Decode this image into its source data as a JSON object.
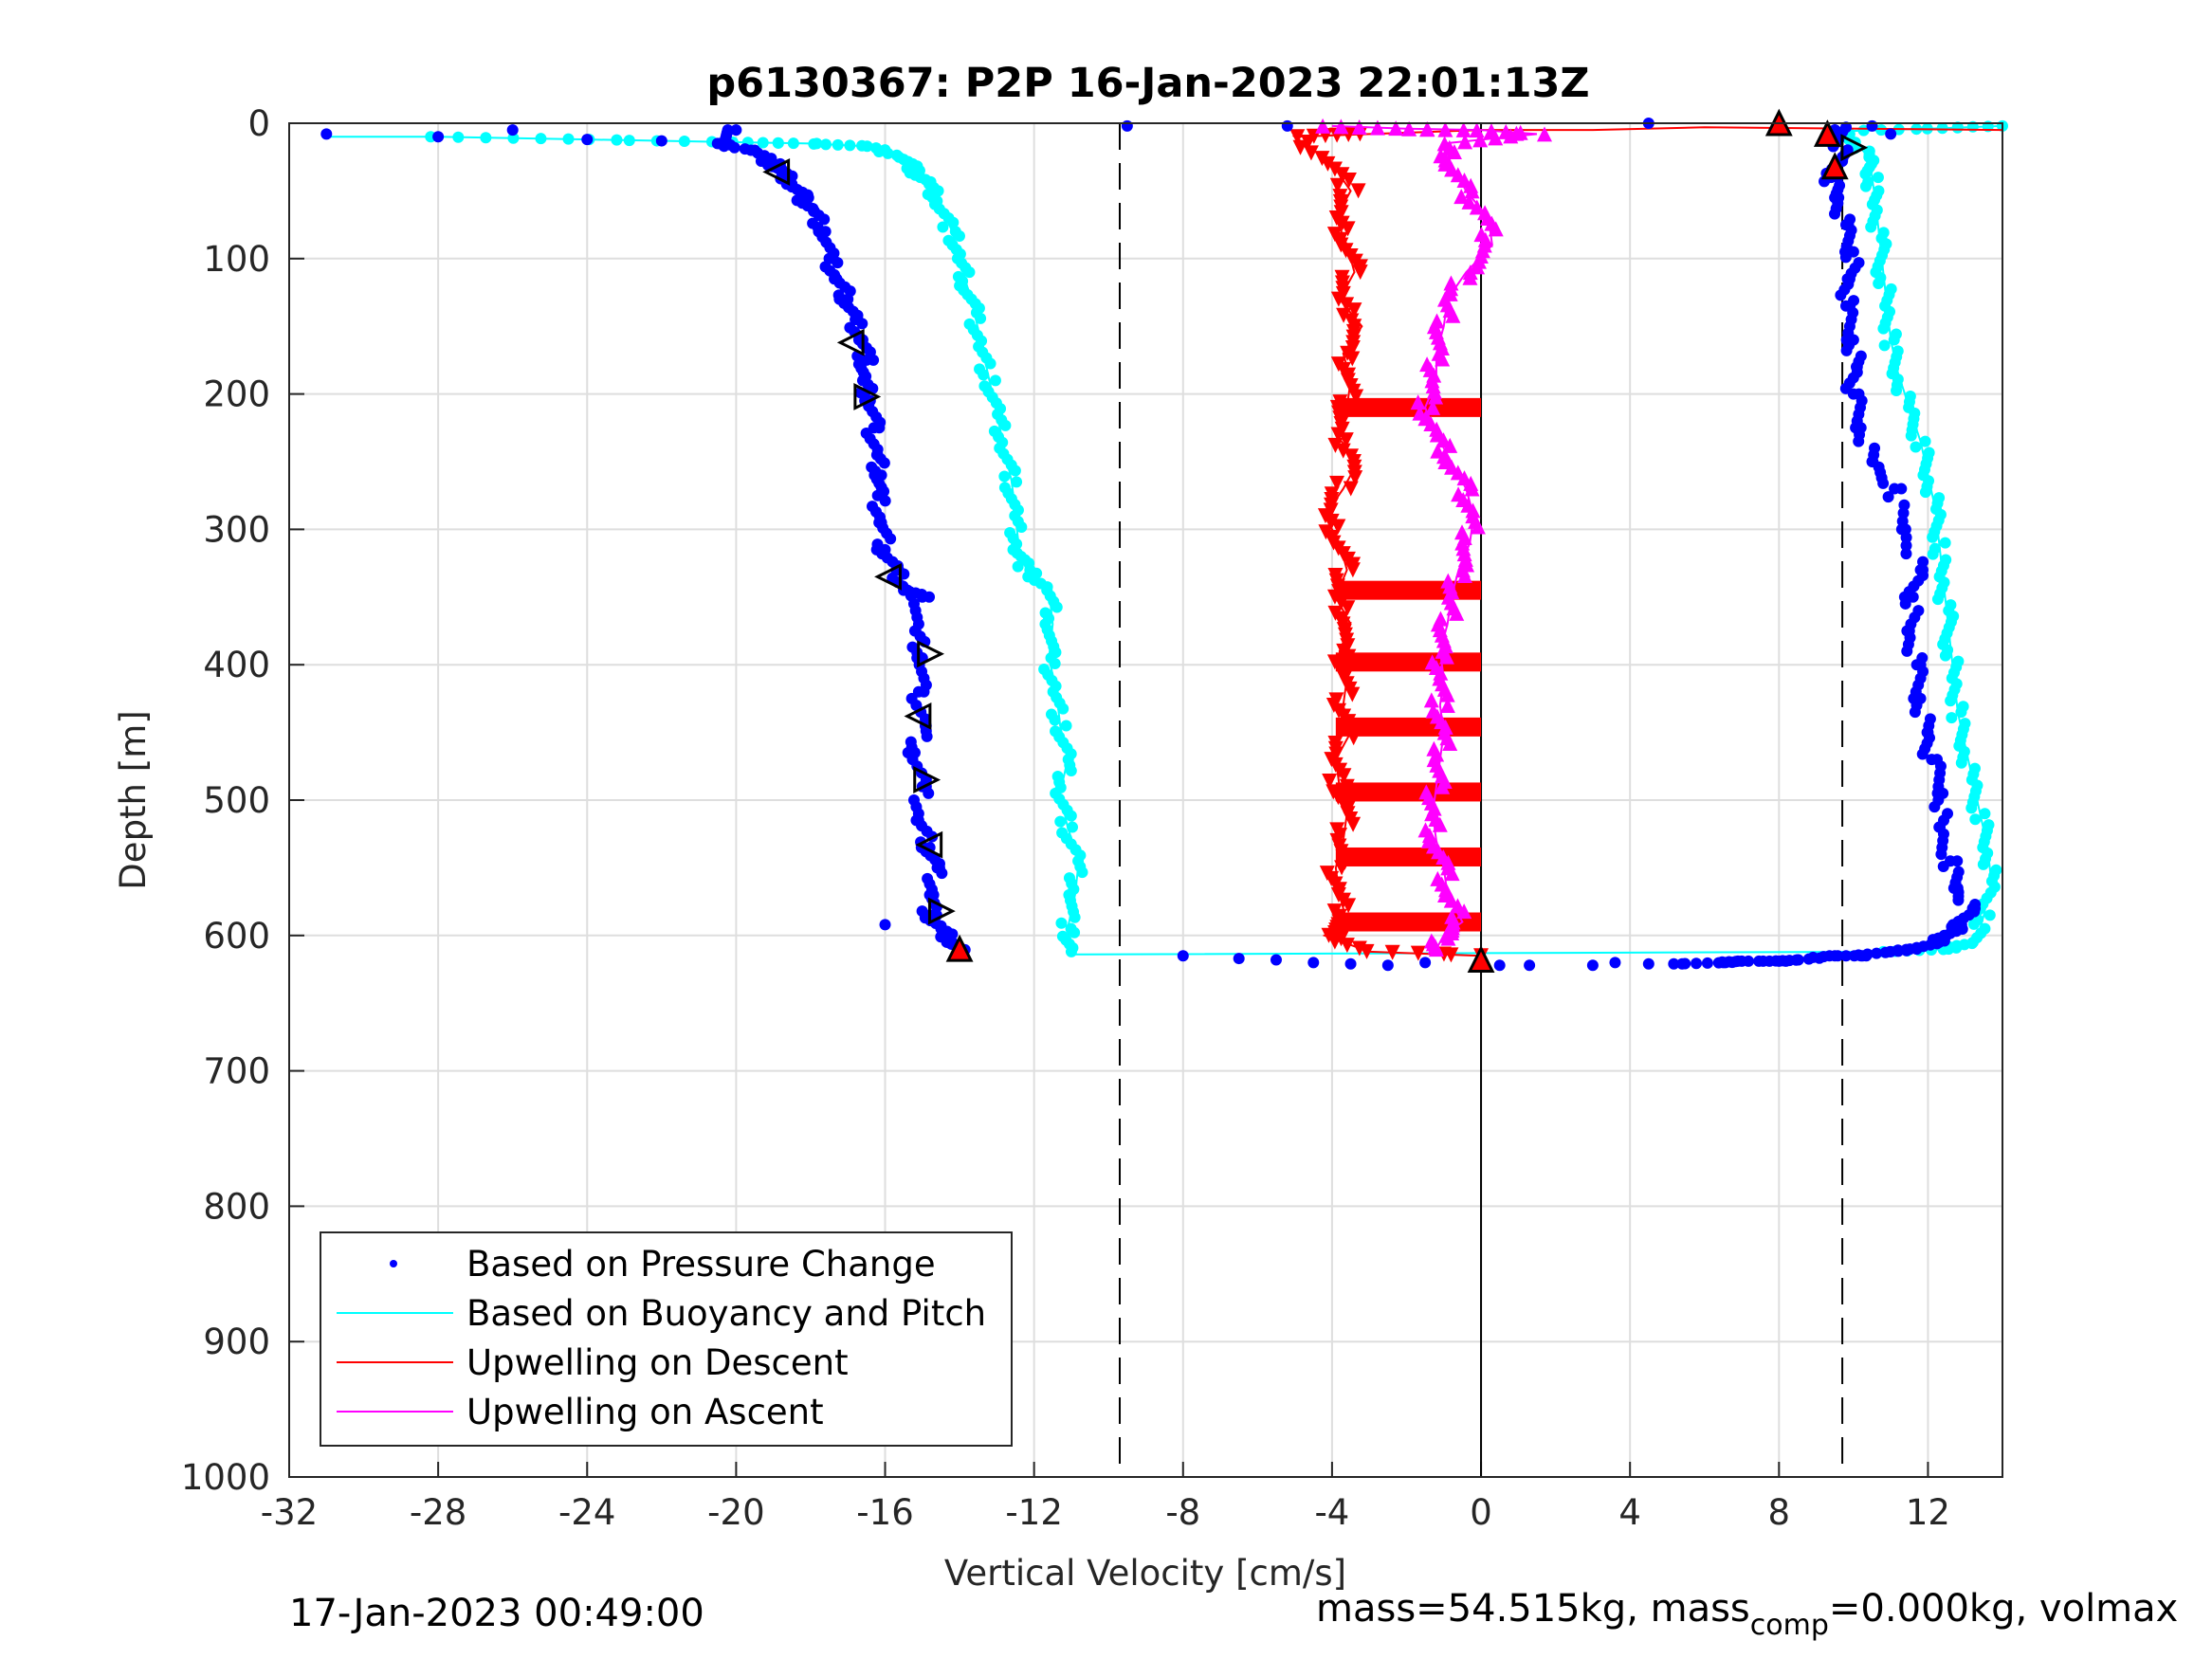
{
  "chart_data": {
    "type": "scatter",
    "title": "p6130367: P2P 16-Jan-2023 22:01:13Z",
    "xlabel": "Vertical Velocity [cm/s]",
    "ylabel": "Depth [m]",
    "xlim": [
      -32,
      14
    ],
    "ylim": [
      0,
      1000
    ],
    "y_reversed": true,
    "grid": true,
    "xticks": [
      "-32",
      "-28",
      "-24",
      "-20",
      "-16",
      "-12",
      "-8",
      "-4",
      "0",
      "4",
      "8",
      "12"
    ],
    "yticks": [
      "0",
      "100",
      "200",
      "300",
      "400",
      "500",
      "600",
      "700",
      "800",
      "900",
      "1000"
    ],
    "reference_lines": {
      "dashed_x": [
        -9.7,
        9.7
      ],
      "solid_x": [
        0
      ]
    },
    "legend": {
      "position": "bottom-left",
      "entries": [
        {
          "label": "Based on Pressure Change",
          "color": "#0000ff",
          "marker": "dot"
        },
        {
          "label": "Based on Buoyancy and Pitch",
          "color": "#00ffff",
          "marker": "line"
        },
        {
          "label": "Upwelling on Descent",
          "color": "#ff0000",
          "marker": "line"
        },
        {
          "label": "Upwelling on Ascent",
          "color": "#ff00ff",
          "marker": "line"
        }
      ]
    },
    "series": [
      {
        "key": "pressure_descent",
        "color": "#0000ff",
        "marker": "dot",
        "points": [
          [
            -31,
            8
          ],
          [
            -28,
            10
          ],
          [
            -26,
            5
          ],
          [
            -24,
            12
          ],
          [
            -22,
            13
          ],
          [
            -20,
            5
          ],
          [
            -20.5,
            15
          ],
          [
            -19.5,
            20
          ],
          [
            -19,
            30
          ],
          [
            -18.8,
            35
          ],
          [
            -18.5,
            45
          ],
          [
            -18.2,
            55
          ],
          [
            -17.9,
            65
          ],
          [
            -17.6,
            80
          ],
          [
            -17.5,
            100
          ],
          [
            -17.3,
            115
          ],
          [
            -17,
            130
          ],
          [
            -16.8,
            145
          ],
          [
            -16.6,
            160
          ],
          [
            -16.5,
            175
          ],
          [
            -16.6,
            190
          ],
          [
            -16.4,
            205
          ],
          [
            -16.3,
            225
          ],
          [
            -16.2,
            245
          ],
          [
            -16.1,
            260
          ],
          [
            -16.2,
            275
          ],
          [
            -16.1,
            295
          ],
          [
            -16,
            315
          ],
          [
            -15.7,
            330
          ],
          [
            -15.4,
            345
          ],
          [
            -15,
            350
          ],
          [
            -15.2,
            375
          ],
          [
            -15,
            395
          ],
          [
            -15.1,
            420
          ],
          [
            -14.9,
            445
          ],
          [
            -15.2,
            465
          ],
          [
            -15,
            490
          ],
          [
            -15.1,
            515
          ],
          [
            -14.8,
            535
          ],
          [
            -14.6,
            550
          ],
          [
            -14.7,
            570
          ],
          [
            -14.8,
            585
          ],
          [
            -14.5,
            595
          ],
          [
            -14.2,
            605
          ],
          [
            -14,
            612
          ],
          [
            -16,
            592
          ]
        ]
      },
      {
        "key": "pressure_ascent",
        "color": "#0000ff",
        "marker": "dot",
        "points": [
          [
            4.5,
            0
          ],
          [
            -9.5,
            2
          ],
          [
            -5.2,
            2
          ],
          [
            -8,
            615
          ],
          [
            -6.5,
            617
          ],
          [
            -5.5,
            618
          ],
          [
            -4.5,
            620
          ],
          [
            -3.5,
            621
          ],
          [
            -2.5,
            622
          ],
          [
            -1.5,
            620
          ],
          [
            0.5,
            622
          ],
          [
            1.3,
            622
          ],
          [
            3,
            622
          ],
          [
            3.6,
            620
          ],
          [
            4.5,
            621
          ],
          [
            5.4,
            621
          ],
          [
            6.5,
            620
          ],
          [
            7,
            619
          ],
          [
            8,
            619
          ],
          [
            8.5,
            618
          ],
          [
            9.5,
            615
          ],
          [
            10.2,
            615
          ],
          [
            11,
            612
          ],
          [
            11.7,
            610
          ],
          [
            12.2,
            605
          ],
          [
            12.5,
            600
          ],
          [
            12.9,
            592
          ],
          [
            13.2,
            580
          ],
          [
            12.8,
            565
          ],
          [
            12.6,
            545
          ],
          [
            12.3,
            520
          ],
          [
            12.4,
            495
          ],
          [
            12.1,
            470
          ],
          [
            12,
            450
          ],
          [
            11.8,
            425
          ],
          [
            11.7,
            400
          ],
          [
            11.5,
            375
          ],
          [
            11.6,
            350
          ],
          [
            11.8,
            330
          ],
          [
            11.4,
            300
          ],
          [
            11.1,
            270
          ],
          [
            10.5,
            250
          ],
          [
            10.2,
            225
          ],
          [
            10,
            200
          ],
          [
            10.1,
            180
          ],
          [
            10,
            160
          ],
          [
            9.8,
            135
          ],
          [
            9.9,
            115
          ],
          [
            10,
            95
          ],
          [
            9.8,
            75
          ],
          [
            9.6,
            55
          ],
          [
            9.4,
            40
          ],
          [
            9.7,
            25
          ],
          [
            9.6,
            12
          ],
          [
            9.5,
            5
          ],
          [
            9.8,
            3
          ],
          [
            10.5,
            2
          ],
          [
            11,
            8
          ]
        ]
      },
      {
        "key": "buoyancy_descent",
        "color": "#00ffff",
        "marker": "line",
        "points": [
          [
            -31,
            10
          ],
          [
            -28,
            10
          ],
          [
            -24,
            12
          ],
          [
            -20,
            14
          ],
          [
            -18,
            15
          ],
          [
            -16.5,
            17
          ],
          [
            -15.5,
            25
          ],
          [
            -15.2,
            35
          ],
          [
            -14.8,
            45
          ],
          [
            -14.5,
            60
          ],
          [
            -14.2,
            80
          ],
          [
            -14,
            100
          ],
          [
            -13.8,
            120
          ],
          [
            -13.6,
            140
          ],
          [
            -13.4,
            165
          ],
          [
            -13.2,
            190
          ],
          [
            -13,
            215
          ],
          [
            -12.8,
            240
          ],
          [
            -12.6,
            265
          ],
          [
            -12.5,
            290
          ],
          [
            -12.4,
            315
          ],
          [
            -12.2,
            330
          ],
          [
            -11.6,
            345
          ],
          [
            -11.5,
            370
          ],
          [
            -11.6,
            395
          ],
          [
            -11.4,
            420
          ],
          [
            -11.3,
            445
          ],
          [
            -11.1,
            470
          ],
          [
            -11.3,
            495
          ],
          [
            -11.1,
            520
          ],
          [
            -10.8,
            545
          ],
          [
            -10.9,
            570
          ],
          [
            -11.1,
            595
          ],
          [
            -11,
            612
          ]
        ]
      },
      {
        "key": "buoyancy_ascent",
        "color": "#00ffff",
        "marker": "line",
        "points": [
          [
            -11,
            614
          ],
          [
            11,
            612
          ],
          [
            12.5,
            610
          ],
          [
            13.3,
            605
          ],
          [
            13.5,
            585
          ],
          [
            13.7,
            560
          ],
          [
            13.6,
            535
          ],
          [
            13.4,
            510
          ],
          [
            13.2,
            485
          ],
          [
            13,
            460
          ],
          [
            12.8,
            435
          ],
          [
            12.7,
            410
          ],
          [
            12.6,
            385
          ],
          [
            12.5,
            360
          ],
          [
            12.4,
            335
          ],
          [
            12.3,
            310
          ],
          [
            12.2,
            285
          ],
          [
            12,
            260
          ],
          [
            11.8,
            235
          ],
          [
            11.5,
            210
          ],
          [
            11.2,
            185
          ],
          [
            11,
            160
          ],
          [
            10.9,
            135
          ],
          [
            10.8,
            110
          ],
          [
            10.7,
            85
          ],
          [
            10.6,
            60
          ],
          [
            10.5,
            40
          ],
          [
            10.4,
            25
          ],
          [
            10,
            12
          ],
          [
            9.6,
            6
          ],
          [
            12,
            4
          ],
          [
            14,
            2
          ]
        ]
      },
      {
        "key": "upwelling_descent",
        "color": "#ff0000",
        "marker": "triangle-down",
        "points": [
          [
            14,
            5
          ],
          [
            6,
            3
          ],
          [
            3,
            5
          ],
          [
            0,
            5
          ],
          [
            -3,
            8
          ],
          [
            -5,
            10
          ],
          [
            -4,
            30
          ],
          [
            -3.5,
            50
          ],
          [
            -3.9,
            70
          ],
          [
            -3.6,
            90
          ],
          [
            -3.4,
            110
          ],
          [
            -3.8,
            130
          ],
          [
            -3.2,
            150
          ],
          [
            -3.7,
            170
          ],
          [
            -3.5,
            190
          ],
          [
            -3.6,
            210
          ],
          [
            -3.9,
            230
          ],
          [
            -3.3,
            250
          ],
          [
            -3.7,
            270
          ],
          [
            -4.2,
            290
          ],
          [
            -3.8,
            310
          ],
          [
            -3.6,
            330
          ],
          [
            -3.9,
            350
          ],
          [
            -3.5,
            370
          ],
          [
            -3.8,
            390
          ],
          [
            -3.6,
            410
          ],
          [
            -3.7,
            430
          ],
          [
            -3.5,
            450
          ],
          [
            -3.9,
            470
          ],
          [
            -3.8,
            490
          ],
          [
            -3.6,
            510
          ],
          [
            -3.7,
            530
          ],
          [
            -3.9,
            550
          ],
          [
            -3.8,
            570
          ],
          [
            -3.6,
            590
          ],
          [
            -4.2,
            600
          ],
          [
            -3,
            612
          ],
          [
            0,
            615
          ]
        ]
      },
      {
        "key": "upwelling_ascent",
        "color": "#ff00ff",
        "marker": "triangle-up",
        "points": [
          [
            -4,
            2
          ],
          [
            -2,
            4
          ],
          [
            0,
            5
          ],
          [
            1.5,
            8
          ],
          [
            -1,
            15
          ],
          [
            -0.8,
            30
          ],
          [
            -0.4,
            50
          ],
          [
            0.2,
            70
          ],
          [
            0.3,
            90
          ],
          [
            -0.4,
            110
          ],
          [
            -0.9,
            130
          ],
          [
            -1,
            150
          ],
          [
            -1.2,
            170
          ],
          [
            -1.2,
            190
          ],
          [
            -1.5,
            210
          ],
          [
            -1.2,
            230
          ],
          [
            -0.8,
            250
          ],
          [
            -0.4,
            270
          ],
          [
            -0.2,
            290
          ],
          [
            -0.3,
            310
          ],
          [
            -0.6,
            330
          ],
          [
            -0.8,
            350
          ],
          [
            -0.9,
            370
          ],
          [
            -1.1,
            390
          ],
          [
            -1,
            410
          ],
          [
            -1.1,
            430
          ],
          [
            -1,
            450
          ],
          [
            -1.1,
            470
          ],
          [
            -1.2,
            490
          ],
          [
            -1.3,
            510
          ],
          [
            -1.2,
            530
          ],
          [
            -1,
            550
          ],
          [
            -0.9,
            570
          ],
          [
            -0.5,
            590
          ],
          [
            -1,
            600
          ],
          [
            -1.2,
            610
          ]
        ]
      },
      {
        "key": "descent_markers",
        "color": "#000000",
        "marker": "triangle-left",
        "points": [
          [
            -18.9,
            36,
            "l"
          ],
          [
            -16.9,
            162,
            "l"
          ],
          [
            -16.5,
            202,
            "r"
          ],
          [
            -15.9,
            335,
            "l"
          ],
          [
            -14.8,
            392,
            "r"
          ],
          [
            -15.1,
            438,
            "l"
          ],
          [
            -14.9,
            485,
            "r"
          ],
          [
            -14.8,
            533,
            "l"
          ],
          [
            -14.5,
            582,
            "r"
          ],
          [
            10,
            18,
            "r"
          ]
        ]
      },
      {
        "key": "event_markers",
        "color": "#ff0000",
        "marker": "triangle-up-outlined",
        "points": [
          [
            8,
            0
          ],
          [
            9.3,
            8
          ],
          [
            9.5,
            32
          ],
          [
            -14,
            610
          ],
          [
            0,
            618
          ]
        ]
      }
    ]
  },
  "footer": {
    "timestamp": "17-Jan-2023 00:49:00",
    "mass_prefix": "mass=54.515kg, mass",
    "mass_sub": "comp",
    "mass_suffix": "=0.000kg, volmax"
  }
}
